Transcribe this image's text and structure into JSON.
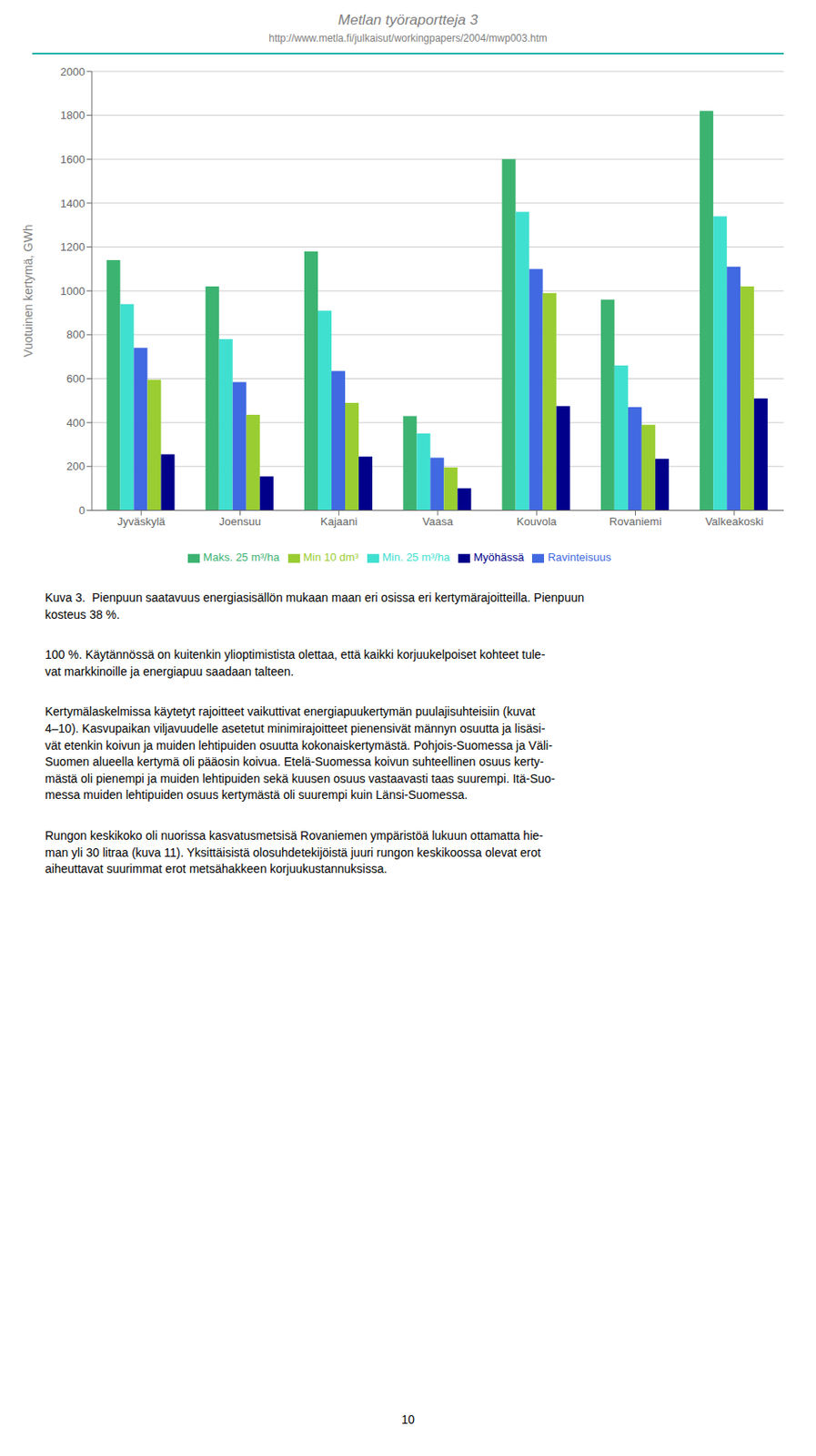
{
  "chart_data": {
    "type": "bar",
    "title": "Metlan työraportteja  3",
    "subtitle": "http://www.metla.fi/julkaisut/workingpapers/2004/mwp003.htm",
    "categories": [
      "Jyväskylä",
      "Joensuu",
      "Kajaani",
      "Vaasa",
      "Kouvola",
      "Rovaniemi",
      "Valkeakoski"
    ],
    "series": [
      {
        "name": "Maks. 25 m³/ha",
        "color": "#3cb371",
        "values": [
          1140,
          1020,
          1180,
          430,
          1600,
          960,
          1820
        ]
      },
      {
        "name": "Min. 25 m³/ha",
        "color": "#40e0d0",
        "values": [
          940,
          780,
          910,
          350,
          1360,
          660,
          1340
        ]
      },
      {
        "name": "Ravinteisuus",
        "color": "#4169e1",
        "values": [
          740,
          585,
          635,
          240,
          1100,
          470,
          1110
        ]
      },
      {
        "name": "Min 10 dm³",
        "color": "#9acd32",
        "values": [
          595,
          435,
          490,
          195,
          990,
          390,
          1020
        ]
      },
      {
        "name": "Myöhässä",
        "color": "#00008b",
        "values": [
          255,
          155,
          245,
          100,
          475,
          235,
          510
        ]
      }
    ],
    "ylabel": "Vuotuinen kertymä, GWh",
    "ylim": [
      0,
      2000
    ],
    "yticks": [
      0,
      200,
      400,
      600,
      800,
      1000,
      1200,
      1400,
      1600,
      1800,
      2000
    ],
    "grid": true,
    "legend": "bottom",
    "annotations": [
      "Kuva 3.  Pienpuun saatavuus energiasisällön mukaan maan eri osissa eri kertymärajoitteilla. Pienpuun",
      "kosteus 38 %.",
      "100 %. Käytännössä on kuitenkin ylioptimistista olettaa, että kaikki korjuukelpoiset kohteet tule-",
      "vat markkinoille ja energiapuu saadaan talteen.",
      "Kertymälaskelmissa käytetyt rajoitteet vaikuttivat energiapuukertymän puulajisuhteisiin (kuvat\n4–10). Kasvupaikan viljavuudelle asetetut minimirajoitteet pienensivät männyn osuutta ja lisäsi-\nvät etenkin koivun ja muiden lehtipuiden osuutta kokonaiskertymästä. Pohjois-Suomessa ja Väli-\nSuomen alueella kertymä oli pääosin koivua. Etelä-Suomessa koivun suhteellinen osuus kerty-\nmästä oli pienempi ja muiden lehtipuiden sekä kuusen osuus vastaavasti taas suurempi. Itä-Suo-\nmessa muiden lehtipuiden osuus kertymästä oli suurempi kuin Länsi-Suomessa.",
      "Rungon keskikoko oli nuorissa kasvatusmetsisä Rovaniemen ympäristöä lukuun ottamatta hie-\nman yli 30 litraa (kuva 11). Yksittäisistä olosuhdetekijöistä juuri rungon keskikoossa olevat erot\naiheuttavat suurimmat erot metsähakkeen korjuukustannuksissa.",
      "10"
    ]
  }
}
